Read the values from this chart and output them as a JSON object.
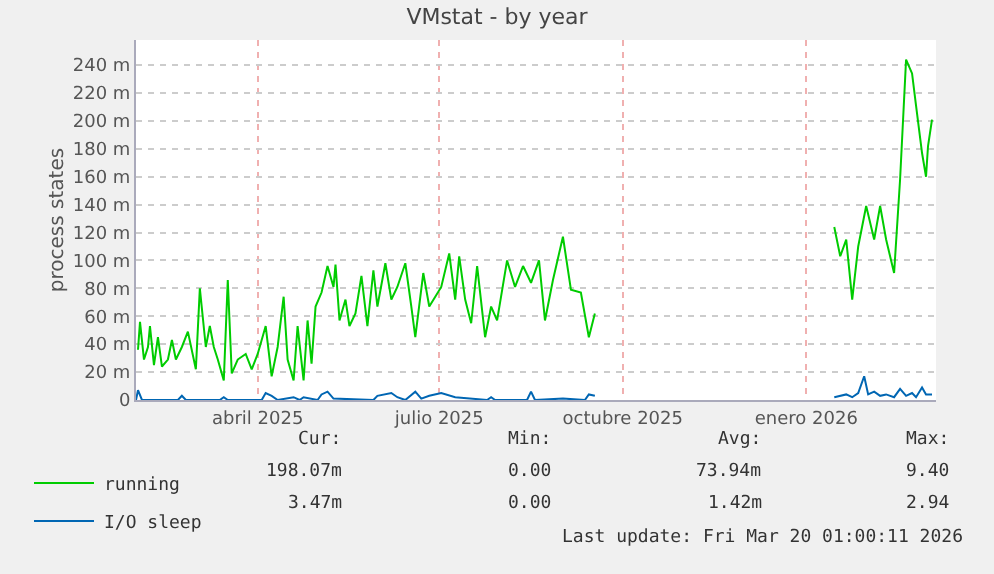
{
  "chart_data": {
    "type": "line",
    "title": "VMstat - by year",
    "ylabel": "process states",
    "xlim": [
      "2025-02-12",
      "2026-03-20"
    ],
    "xticks": [
      {
        "value": "2025-04-14",
        "label": "abril 2025"
      },
      {
        "value": "2025-07-14",
        "label": "julio 2025"
      },
      {
        "value": "2025-10-14",
        "label": "octubre 2025"
      },
      {
        "value": "2026-01-14",
        "label": "enero 2026"
      }
    ],
    "ylim": [
      0,
      258
    ],
    "yticks": [
      0,
      {
        "value": 20,
        "label": "20 m"
      },
      {
        "value": 40,
        "label": "40 m"
      },
      {
        "value": 60,
        "label": "60 m"
      },
      {
        "value": 80,
        "label": "80 m"
      },
      {
        "value": 100,
        "label": "100 m"
      },
      {
        "value": 120,
        "label": "120 m"
      },
      {
        "value": 140,
        "label": "140 m"
      },
      {
        "value": 160,
        "label": "160 m"
      },
      {
        "value": 180,
        "label": "180 m"
      },
      {
        "value": 200,
        "label": "200 m"
      },
      {
        "value": 220,
        "label": "220 m"
      },
      {
        "value": 240,
        "label": "240 m"
      }
    ],
    "grid": true,
    "legend": "bottom left",
    "marker": "none",
    "line_style": "solid",
    "series": [
      {
        "name": "running",
        "color": "#00cc00",
        "x": [
          "2025-02-13",
          "2025-02-14",
          "2025-02-16",
          "2025-02-18",
          "2025-02-19",
          "2025-02-21",
          "2025-02-23",
          "2025-02-25",
          "2025-02-28",
          "2025-03-02",
          "2025-03-04",
          "2025-03-07",
          "2025-03-10",
          "2025-03-14",
          "2025-03-16",
          "2025-03-19",
          "2025-03-21",
          "2025-03-23",
          "2025-03-25",
          "2025-03-28",
          "2025-03-30",
          "2025-04-01",
          "2025-04-04",
          "2025-04-08",
          "2025-04-11",
          "2025-04-14",
          "2025-04-18",
          "2025-04-21",
          "2025-04-24",
          "2025-04-27",
          "2025-04-29",
          "2025-05-02",
          "2025-05-04",
          "2025-05-07",
          "2025-05-09",
          "2025-05-11",
          "2025-05-13",
          "2025-05-16",
          "2025-05-19",
          "2025-05-22",
          "2025-05-23",
          "2025-05-25",
          "2025-05-28",
          "2025-05-30",
          "2025-06-02",
          "2025-06-05",
          "2025-06-08",
          "2025-06-11",
          "2025-06-13",
          "2025-06-17",
          "2025-06-20",
          "2025-06-23",
          "2025-06-27",
          "2025-06-30",
          "2025-07-02",
          "2025-07-06",
          "2025-07-09",
          "2025-07-12",
          "2025-07-15",
          "2025-07-19",
          "2025-07-22",
          "2025-07-24",
          "2025-07-27",
          "2025-07-30",
          "2025-08-02",
          "2025-08-06",
          "2025-08-09",
          "2025-08-12",
          "2025-08-17",
          "2025-08-21",
          "2025-08-25",
          "2025-08-29",
          "2025-09-02",
          "2025-09-05",
          "2025-09-09",
          "2025-09-14",
          "2025-09-18",
          "2025-09-23",
          "2025-09-27",
          "2025-09-30",
          "2025-10-15",
          "2026-01-28",
          "2026-01-31",
          "2026-02-03",
          "2026-02-06",
          "2026-02-09",
          "2026-02-13",
          "2026-02-17",
          "2026-02-20",
          "2026-02-23",
          "2026-02-27",
          "2026-03-02",
          "2026-03-05",
          "2026-03-08",
          "2026-03-10",
          "2026-03-13",
          "2026-03-15",
          "2026-03-16",
          "2026-03-18"
        ],
        "values": [
          36,
          56,
          29,
          38,
          53,
          25,
          45,
          24,
          29,
          43,
          29,
          38,
          49,
          22,
          80,
          38,
          53,
          38,
          29,
          14,
          86,
          19,
          29,
          33,
          22,
          33,
          53,
          17,
          38,
          74,
          29,
          14,
          53,
          14,
          57,
          26,
          67,
          77,
          96,
          81,
          97,
          57,
          72,
          53,
          62,
          89,
          53,
          93,
          67,
          98,
          72,
          81,
          98,
          67,
          45,
          91,
          67,
          74,
          81,
          105,
          72,
          103,
          72,
          55,
          96,
          45,
          67,
          57,
          100,
          81,
          96,
          84,
          100,
          57,
          86,
          117,
          79,
          77,
          45,
          62,
          null,
          124,
          103,
          115,
          72,
          110,
          139,
          115,
          139,
          115,
          91,
          158,
          244,
          234,
          211,
          177,
          160,
          182,
          201
        ]
      },
      {
        "name": "I/O sleep",
        "color": "#0066b3",
        "x": [
          "2025-02-12",
          "2025-02-13",
          "2025-02-15",
          "2025-03-05",
          "2025-03-07",
          "2025-03-09",
          "2025-03-26",
          "2025-03-28",
          "2025-03-30",
          "2025-04-16",
          "2025-04-18",
          "2025-04-21",
          "2025-04-24",
          "2025-05-02",
          "2025-05-05",
          "2025-05-07",
          "2025-05-14",
          "2025-05-16",
          "2025-05-19",
          "2025-05-22",
          "2025-06-11",
          "2025-06-13",
          "2025-06-20",
          "2025-06-23",
          "2025-06-27",
          "2025-07-02",
          "2025-07-05",
          "2025-07-09",
          "2025-07-15",
          "2025-07-22",
          "2025-08-07",
          "2025-08-09",
          "2025-08-11",
          "2025-08-27",
          "2025-08-29",
          "2025-08-31",
          "2025-09-14",
          "2025-09-25",
          "2025-09-27",
          "2025-09-30",
          "2025-10-15",
          "2026-01-28",
          "2026-02-03",
          "2026-02-06",
          "2026-02-09",
          "2026-02-12",
          "2026-02-14",
          "2026-02-17",
          "2026-02-20",
          "2026-02-23",
          "2026-02-27",
          "2026-03-02",
          "2026-03-05",
          "2026-03-08",
          "2026-03-10",
          "2026-03-13",
          "2026-03-15",
          "2026-03-18"
        ],
        "values": [
          0,
          7,
          0,
          0,
          3,
          0,
          0,
          2,
          0,
          0,
          5,
          3,
          0,
          2,
          0,
          2,
          0,
          4,
          6,
          1,
          0,
          3,
          5,
          2,
          0,
          6,
          1,
          3,
          5,
          2,
          0,
          2,
          0,
          0,
          6,
          0,
          1,
          0,
          4,
          3,
          null,
          2,
          4,
          2,
          5,
          17,
          4,
          6,
          3,
          4,
          2,
          8,
          3,
          5,
          2,
          9,
          4,
          4
        ]
      }
    ],
    "annotations": [
      "Cur:",
      "Min:",
      "Avg:",
      "Max:",
      "198.07m",
      "0.00",
      "73.94m",
      "9.40",
      "3.47m",
      "0.00",
      "1.42m",
      "2.94",
      "Last update: Fri Mar 20 01:00:11 2026"
    ]
  }
}
